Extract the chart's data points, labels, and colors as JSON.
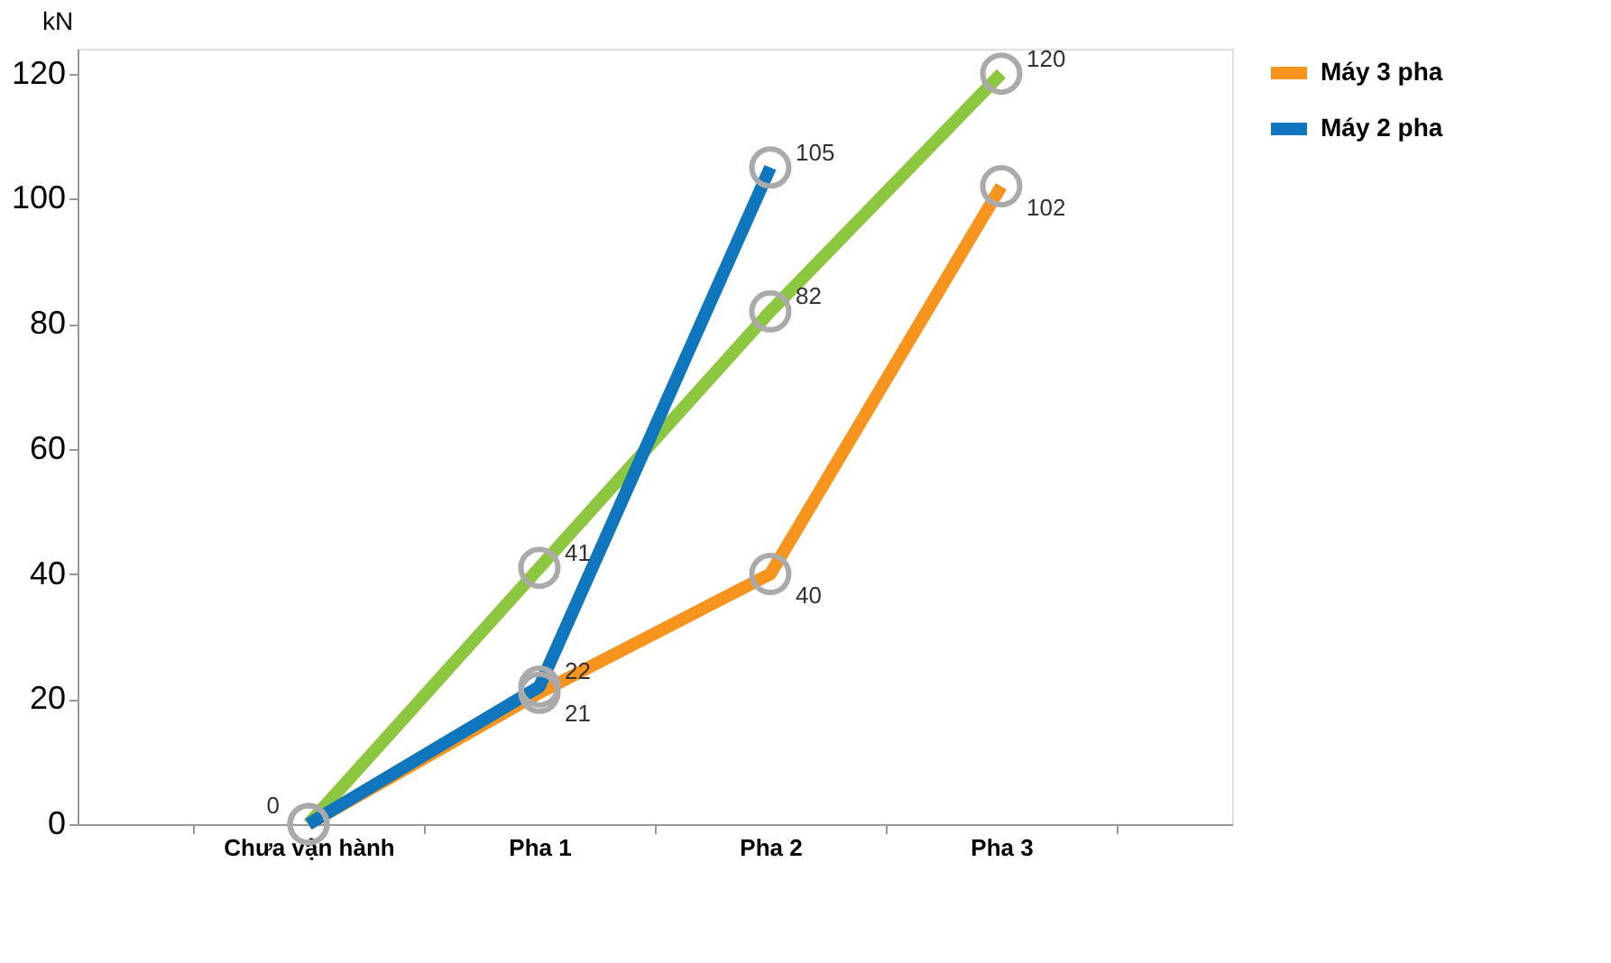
{
  "chart_data": {
    "type": "line",
    "ylabel": "kN",
    "categories": [
      "Chưa vận hành",
      "Pha 1",
      "Pha 2",
      "Pha 3"
    ],
    "ylim": [
      0,
      124
    ],
    "yticks": [
      0,
      20,
      40,
      60,
      80,
      100,
      120
    ],
    "grid": false,
    "legend": "top right",
    "marker": "circle",
    "line_style": "solid",
    "series": [
      {
        "color": "#8dc63f",
        "values": [
          0,
          41,
          82,
          120
        ],
        "value_labels": [
          "0",
          "41",
          "82",
          "120"
        ]
      },
      {
        "name": "Máy 3 pha",
        "color": "#f7941d",
        "values": [
          0,
          21,
          40,
          102
        ],
        "value_labels": [
          null,
          "21",
          "40",
          "102"
        ]
      },
      {
        "name": "Máy 2 pha",
        "color": "#0f75bc",
        "values": [
          0,
          22,
          105,
          null
        ],
        "value_labels": [
          null,
          "22",
          "105",
          null
        ]
      }
    ]
  }
}
